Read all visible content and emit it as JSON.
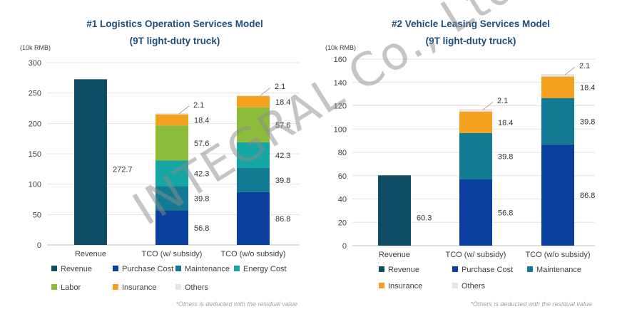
{
  "chart_data": [
    {
      "type": "bar",
      "stacked": true,
      "title": "#1 Logistics Operation Services Model",
      "subtitle": "(9T light-duty truck)",
      "unit": "(10k RMB)",
      "ylim": [
        0,
        300
      ],
      "yticks": [
        "0",
        "50",
        "100",
        "150",
        "200",
        "250",
        "300"
      ],
      "categories": [
        "Revenue",
        "TCO  (w/ subsidy)",
        "TCO (w/o subsidy)"
      ],
      "series": [
        {
          "name": "Revenue",
          "color": "#0e4d64",
          "values": [
            272.7,
            null,
            null
          ]
        },
        {
          "name": "Purchase Cost",
          "color": "#0b3f9e",
          "values": [
            null,
            56.8,
            86.8
          ]
        },
        {
          "name": "Maintenance",
          "color": "#137a94",
          "values": [
            null,
            39.8,
            39.8
          ]
        },
        {
          "name": "Energy Cost",
          "color": "#14a5a5",
          "values": [
            null,
            42.3,
            42.3
          ]
        },
        {
          "name": "Labor",
          "color": "#8cbd3a",
          "values": [
            null,
            57.6,
            57.6
          ]
        },
        {
          "name": "Insurance",
          "color": "#f4a11f",
          "values": [
            null,
            18.4,
            18.4
          ]
        },
        {
          "name": "Others",
          "color": "#e6e6e6",
          "values": [
            null,
            2.1,
            2.1
          ]
        }
      ],
      "labels": {
        "revenue": "272.7",
        "sub": [
          "56.8",
          "39.8",
          "42.3",
          "57.6",
          "18.4",
          "2.1"
        ],
        "nosub": [
          "86.8",
          "39.8",
          "42.3",
          "57.6",
          "18.4",
          "2.1"
        ]
      },
      "legend": [
        "Revenue",
        "Purchase Cost",
        "Maintenance",
        "Energy Cost",
        "Labor",
        "Insurance",
        "Others"
      ],
      "legend_position": "bottom",
      "footnote": "*Others is deducted with the residual value"
    },
    {
      "type": "bar",
      "stacked": true,
      "title": "#2 Vehicle Leasing Services Model",
      "subtitle": "(9T light-duty truck)",
      "unit": "(10k RMB)",
      "ylim": [
        0,
        160
      ],
      "yticks": [
        "0",
        "20",
        "40",
        "60",
        "80",
        "100",
        "120",
        "140",
        "160"
      ],
      "categories": [
        "Revenue",
        "TCO  (w/ subsidy)",
        "TCO (w/o subsidy)"
      ],
      "series": [
        {
          "name": "Revenue",
          "color": "#0e4d64",
          "values": [
            60.3,
            null,
            null
          ]
        },
        {
          "name": "Purchase Cost",
          "color": "#0b3f9e",
          "values": [
            null,
            56.8,
            86.8
          ]
        },
        {
          "name": "Maintenance",
          "color": "#137a94",
          "values": [
            null,
            39.8,
            39.8
          ]
        },
        {
          "name": "Insurance",
          "color": "#f4a11f",
          "values": [
            null,
            18.4,
            18.4
          ]
        },
        {
          "name": "Others",
          "color": "#e6e6e6",
          "values": [
            null,
            2.1,
            2.1
          ]
        }
      ],
      "labels": {
        "revenue": "60.3",
        "sub": [
          "56.8",
          "39.8",
          "18.4",
          "2.1"
        ],
        "nosub": [
          "86.8",
          "39.8",
          "18.4",
          "2.1"
        ]
      },
      "legend": [
        "Revenue",
        "Purchase Cost",
        "Maintenance",
        "Insurance",
        "Others"
      ],
      "legend_position": "bottom",
      "footnote": "*Others is deducted with the residual value"
    }
  ],
  "watermark": "INTEGRAL Co., Ltd"
}
